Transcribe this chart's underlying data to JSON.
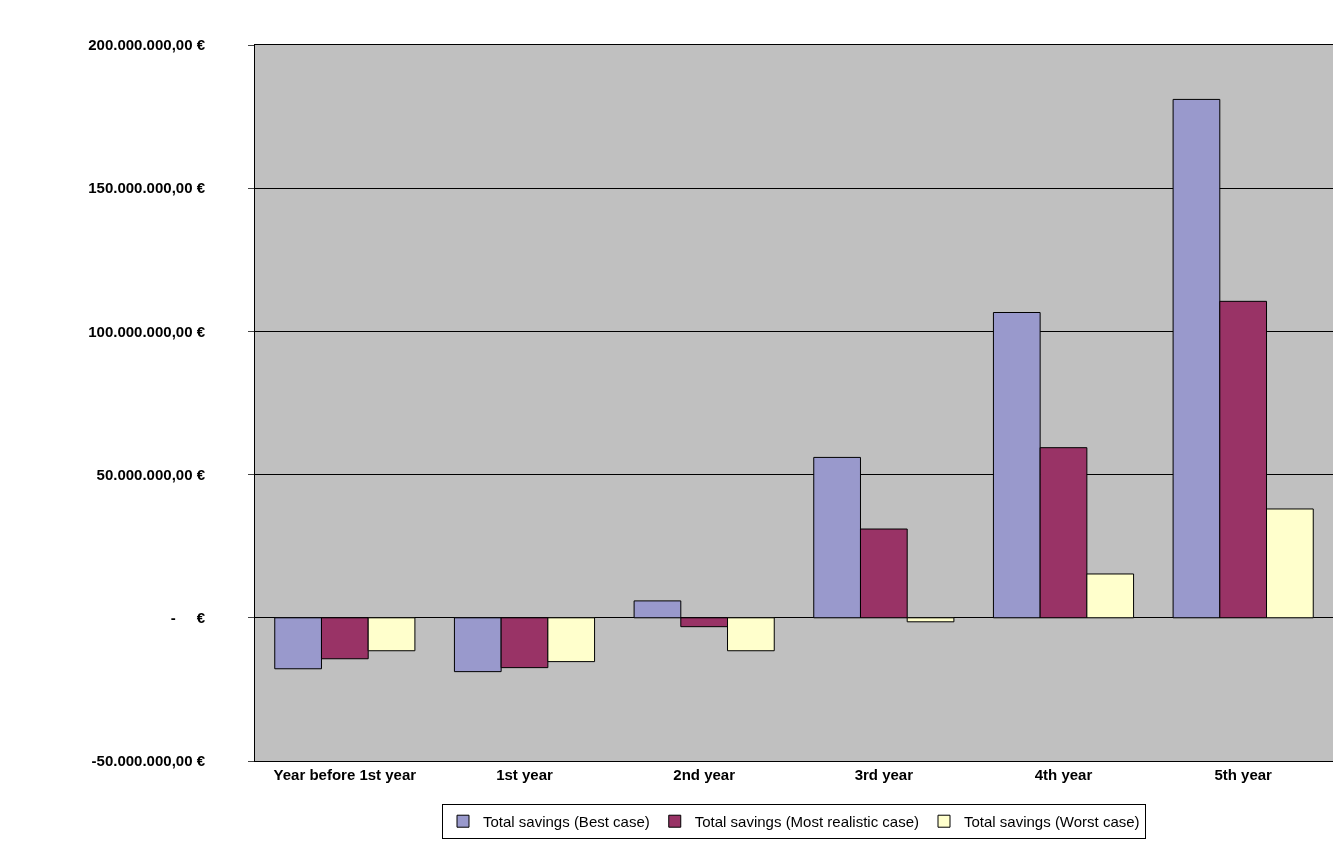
{
  "chart_data": {
    "type": "bar",
    "categories": [
      "Year before 1st year",
      "1st year",
      "2nd year",
      "3rd year",
      "4th year",
      "5th year"
    ],
    "series": [
      {
        "name": "Total savings (Best case)",
        "color": "#9999cc",
        "values": [
          -17800000,
          -18800000,
          5900000,
          56000000,
          106600000,
          181000000
        ]
      },
      {
        "name": "Total savings (Most realistic case)",
        "color": "#993366",
        "values": [
          -14300000,
          -17400000,
          -3100000,
          31000000,
          59400000,
          110500000
        ]
      },
      {
        "name": "Total savings (Worst case)",
        "color": "#ffffcc",
        "values": [
          -11500000,
          -15300000,
          -11500000,
          -1400000,
          15300000,
          38000000
        ]
      }
    ],
    "ylim": [
      -50000000,
      200000000
    ],
    "yticks": [
      {
        "value": -50000000,
        "label": "-50.000.000,00 €"
      },
      {
        "value": 0,
        "label": "-     €"
      },
      {
        "value": 50000000,
        "label": "50.000.000,00 €"
      },
      {
        "value": 100000000,
        "label": "100.000.000,00 €"
      },
      {
        "value": 150000000,
        "label": "150.000.000,00 €"
      },
      {
        "value": 200000000,
        "label": "200.000.000,00 €"
      }
    ],
    "grid": "y",
    "legend": "bottom"
  }
}
